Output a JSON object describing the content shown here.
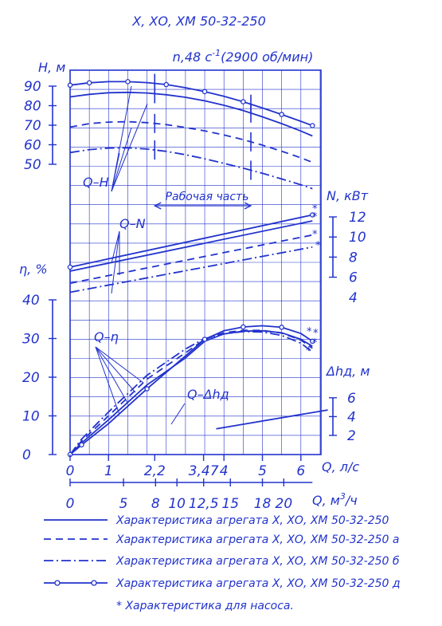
{
  "chart_data": {
    "type": "line",
    "title": "Х, ХО, ХМ 50-32-250",
    "subtitle_prefix": "n,48 c",
    "subtitle_exp": "-1",
    "subtitle_suffix": "(2900 об/мин)",
    "colors": {
      "ink": "#2233cc",
      "grid": "#2233cc"
    },
    "axes": {
      "H": {
        "label": "H, м",
        "ticks": [
          "90",
          "80",
          "70",
          "60",
          "50"
        ],
        "range": [
          50,
          90
        ]
      },
      "N": {
        "label": "N, кВт",
        "ticks": [
          "12",
          "10",
          "8",
          "6",
          "4"
        ],
        "range": [
          4,
          12
        ]
      },
      "eta": {
        "label": "η, %",
        "ticks": [
          "40",
          "30",
          "20",
          "10",
          "0"
        ],
        "range": [
          0,
          40
        ]
      },
      "dh": {
        "label": "Δhд, м",
        "ticks": [
          "6",
          "4",
          "2"
        ],
        "range": [
          2,
          6
        ]
      },
      "Q_ls": {
        "label": "Q, л/с",
        "ticks": [
          "0",
          "1",
          "2,2",
          "3,47",
          "4",
          "5",
          "6"
        ],
        "values": [
          0,
          1,
          2.2,
          3.47,
          4,
          5,
          6
        ]
      },
      "Q_m3h": {
        "label_prefix": "Q, м",
        "label_exp": "3",
        "label_suffix": "/ч",
        "ticks": [
          "0",
          "5",
          "8",
          "10",
          "12,5",
          "15",
          "18",
          "20"
        ],
        "values": [
          0,
          5,
          8,
          10,
          12.5,
          15,
          18,
          20
        ]
      }
    },
    "curve_labels": {
      "qh": "Q–H",
      "qn": "Q–N",
      "qeta": "Q–η",
      "qdh": "Q–Δhд",
      "working": "Рабочая часть"
    },
    "series": [
      {
        "name": "Характеристика агрегата Х, ХО, ХМ 50-32-250",
        "style": "solid",
        "H": [
          [
            0,
            84.5
          ],
          [
            0.5,
            85.8
          ],
          [
            1,
            86.6
          ],
          [
            1.5,
            86.8
          ],
          [
            2,
            86.5
          ],
          [
            2.5,
            85.6
          ],
          [
            3,
            84.3
          ],
          [
            3.5,
            82.5
          ],
          [
            4,
            80.2
          ],
          [
            4.5,
            77.5
          ],
          [
            5,
            74.3
          ],
          [
            5.5,
            70.8
          ],
          [
            6,
            67
          ],
          [
            6.3,
            64.5
          ]
        ],
        "N": [
          [
            0,
            6.6
          ],
          [
            6.3,
            11.6
          ]
        ],
        "eta": [
          [
            0,
            0
          ],
          [
            0.3,
            3
          ],
          [
            1,
            9
          ],
          [
            2,
            18
          ],
          [
            3,
            25
          ],
          [
            3.5,
            29.3
          ],
          [
            4,
            31.2
          ],
          [
            4.5,
            31.9
          ],
          [
            5,
            32
          ],
          [
            5.5,
            31.5
          ],
          [
            6,
            29.8
          ],
          [
            6.3,
            28
          ]
        ]
      },
      {
        "name": "Характеристика агрегата Х, ХО, ХМ 50-32-250 а",
        "style": "dash",
        "H": [
          [
            0,
            69
          ],
          [
            0.5,
            70.8
          ],
          [
            1,
            71.6
          ],
          [
            1.5,
            71.8
          ],
          [
            2,
            71.3
          ],
          [
            2.5,
            70.3
          ],
          [
            3,
            68.8
          ],
          [
            3.5,
            67.1
          ],
          [
            4,
            65
          ],
          [
            4.5,
            62.6
          ],
          [
            5,
            59.8
          ],
          [
            5.5,
            56.7
          ],
          [
            6,
            53.3
          ],
          [
            6.3,
            51
          ]
        ],
        "N": [
          [
            0,
            5.4
          ],
          [
            6.3,
            10.2
          ]
        ],
        "eta": [
          [
            0,
            0
          ],
          [
            0.3,
            3.5
          ],
          [
            1,
            10
          ],
          [
            2,
            19.5
          ],
          [
            3,
            26.3
          ],
          [
            3.5,
            29.8
          ],
          [
            4,
            31.5
          ],
          [
            4.5,
            32.1
          ],
          [
            5,
            32.1
          ],
          [
            5.5,
            31.4
          ],
          [
            6,
            29.6
          ],
          [
            6.3,
            27.5
          ]
        ]
      },
      {
        "name": "Характеристика агрегата Х, ХО, ХМ 50-32-250 б",
        "style": "dashdot",
        "H": [
          [
            0,
            56
          ],
          [
            0.5,
            57.5
          ],
          [
            1,
            58.3
          ],
          [
            1.5,
            58.4
          ],
          [
            2,
            57.8
          ],
          [
            2.5,
            56.6
          ],
          [
            3,
            54.9
          ],
          [
            3.5,
            52.8
          ],
          [
            4,
            50.5
          ],
          [
            4.5,
            48
          ],
          [
            5,
            45.4
          ],
          [
            5.5,
            42.5
          ],
          [
            6,
            39.5
          ],
          [
            6.3,
            37.5
          ]
        ],
        "N": [
          [
            0,
            4.5
          ],
          [
            6.3,
            9
          ]
        ],
        "eta": [
          [
            0,
            0
          ],
          [
            0.3,
            4
          ],
          [
            1,
            11
          ],
          [
            2,
            20.5
          ],
          [
            3,
            27.3
          ],
          [
            3.5,
            30
          ],
          [
            4,
            31.2
          ],
          [
            4.5,
            31.8
          ],
          [
            5,
            31.7
          ],
          [
            5.5,
            30.8
          ],
          [
            6,
            28.8
          ],
          [
            6.3,
            26.5
          ]
        ]
      },
      {
        "name": "Характеристика агрегата Х, ХО, ХМ 50-32-250 д",
        "style": "marker",
        "H": [
          [
            0,
            90.5
          ],
          [
            0.5,
            91.7
          ],
          [
            1,
            92.3
          ],
          [
            1.5,
            92.3
          ],
          [
            2,
            91.8
          ],
          [
            2.5,
            90.8
          ],
          [
            3,
            89.2
          ],
          [
            3.5,
            87.2
          ],
          [
            4,
            84.8
          ],
          [
            4.5,
            82
          ],
          [
            5,
            78.8
          ],
          [
            5.5,
            75.5
          ],
          [
            6,
            72
          ],
          [
            6.3,
            69.8
          ]
        ],
        "N": [
          [
            0,
            7
          ],
          [
            6.3,
            12.2
          ]
        ],
        "eta": [
          [
            0,
            0
          ],
          [
            0.3,
            2.5
          ],
          [
            1,
            8
          ],
          [
            2,
            17
          ],
          [
            3,
            25.5
          ],
          [
            3.5,
            29.8
          ],
          [
            4,
            32
          ],
          [
            4.5,
            33
          ],
          [
            5,
            33.3
          ],
          [
            5.5,
            32.9
          ],
          [
            6,
            31.3
          ],
          [
            6.3,
            29.3
          ]
        ]
      }
    ],
    "dh_line": [
      [
        3.8,
        2.7
      ],
      [
        6.7,
        4.7
      ]
    ],
    "working_range": [
      2.2,
      4.7
    ],
    "footnote": "* Характеристика для насоса.",
    "star": "*"
  }
}
